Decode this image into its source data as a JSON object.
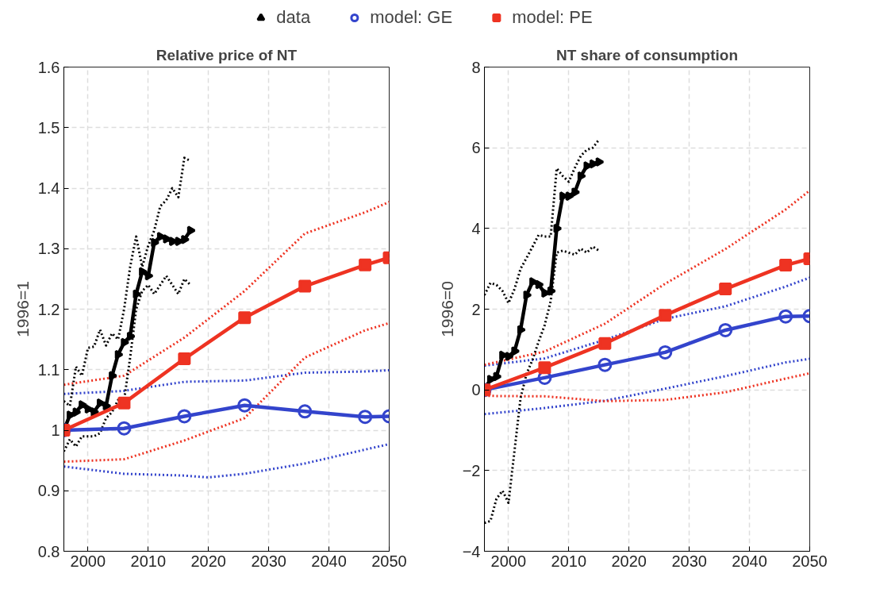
{
  "chart_data": [
    {
      "type": "line",
      "title": "Relative price of NT",
      "ylabel": "1996=1",
      "xlim": [
        1996,
        2050
      ],
      "xticks": [
        2000,
        2010,
        2020,
        2030,
        2040,
        2050
      ],
      "ylim": [
        0.8,
        1.6
      ],
      "yticks": [
        0.8,
        0.9,
        1,
        1.1,
        1.2,
        1.3,
        1.4,
        1.5,
        1.6
      ],
      "grid": true,
      "legend": "top",
      "series": [
        {
          "color": "#3344cc",
          "line_style": "dotted",
          "marker": "none",
          "x": [
            1996,
            2006,
            2016,
            2026,
            2036,
            2046,
            2050
          ],
          "values": [
            1.06,
            1.065,
            1.08,
            1.082,
            1.095,
            1.097,
            1.099
          ]
        },
        {
          "color": "#3344cc",
          "line_style": "dotted",
          "marker": "none",
          "x": [
            1996,
            2006,
            2016,
            2020,
            2026,
            2036,
            2046,
            2050
          ],
          "values": [
            0.94,
            0.928,
            0.925,
            0.922,
            0.928,
            0.945,
            0.968,
            0.977
          ]
        },
        {
          "color": "#ee3322",
          "line_style": "dotted",
          "marker": "none",
          "x": [
            1996,
            2006,
            2016,
            2026,
            2036,
            2046,
            2050
          ],
          "values": [
            1.075,
            1.09,
            1.153,
            1.23,
            1.325,
            1.36,
            1.377
          ]
        },
        {
          "color": "#ee3322",
          "line_style": "dotted",
          "marker": "none",
          "x": [
            1996,
            2006,
            2016,
            2026,
            2036,
            2046,
            2050
          ],
          "values": [
            0.948,
            0.952,
            0.983,
            1.02,
            1.12,
            1.165,
            1.177
          ]
        },
        {
          "color": "#000000",
          "line_style": "dotted",
          "marker": "none",
          "x": [
            1996,
            1997,
            1998,
            1999,
            2000,
            2001,
            2002,
            2003,
            2004,
            2005,
            2006,
            2007,
            2008,
            2009,
            2010,
            2011,
            2012,
            2013,
            2014,
            2015,
            2016,
            2017
          ],
          "values": [
            1.048,
            1.04,
            1.105,
            1.09,
            1.136,
            1.138,
            1.166,
            1.14,
            1.16,
            1.15,
            1.2,
            1.27,
            1.32,
            1.27,
            1.305,
            1.33,
            1.37,
            1.38,
            1.4,
            1.385,
            1.45,
            1.445
          ]
        },
        {
          "color": "#000000",
          "line_style": "dotted",
          "marker": "none",
          "x": [
            1996,
            1997,
            1998,
            1999,
            2000,
            2001,
            2002,
            2003,
            2004,
            2005,
            2006,
            2007,
            2008,
            2009,
            2010,
            2011,
            2012,
            2013,
            2014,
            2015,
            2016,
            2017
          ],
          "values": [
            0.965,
            0.985,
            0.973,
            0.99,
            0.99,
            0.99,
            0.995,
            1.02,
            1.03,
            1.05,
            1.05,
            1.12,
            1.2,
            1.23,
            1.24,
            1.225,
            1.24,
            1.255,
            1.24,
            1.225,
            1.25,
            1.24
          ]
        },
        {
          "name": "data",
          "color": "#000000",
          "line_style": "solid",
          "marker": "triangle",
          "x": [
            1996,
            1997,
            1998,
            1999,
            2000,
            2001,
            2002,
            2003,
            2004,
            2005,
            2006,
            2007,
            2008,
            2009,
            2010,
            2011,
            2012,
            2013,
            2014,
            2015,
            2016,
            2017
          ],
          "values": [
            1.0,
            1.025,
            1.03,
            1.042,
            1.035,
            1.03,
            1.045,
            1.04,
            1.09,
            1.125,
            1.145,
            1.155,
            1.225,
            1.262,
            1.255,
            1.31,
            1.32,
            1.316,
            1.312,
            1.312,
            1.315,
            1.33
          ]
        },
        {
          "name": "model: GE",
          "color": "#3344cc",
          "line_style": "solid",
          "marker": "circle",
          "x": [
            1996,
            2006,
            2016,
            2026,
            2036,
            2046,
            2050
          ],
          "values": [
            1.0,
            1.003,
            1.023,
            1.041,
            1.031,
            1.022,
            1.023
          ]
        },
        {
          "name": "model: PE",
          "color": "#ee3322",
          "line_style": "solid",
          "marker": "square",
          "x": [
            1996,
            2006,
            2016,
            2026,
            2036,
            2046,
            2050
          ],
          "values": [
            1.0,
            1.045,
            1.118,
            1.186,
            1.238,
            1.273,
            1.285
          ]
        }
      ]
    },
    {
      "type": "line",
      "title": "NT share of consumption",
      "ylabel": "1996=0",
      "xlim": [
        1996,
        2050
      ],
      "xticks": [
        2000,
        2010,
        2020,
        2030,
        2040,
        2050
      ],
      "ylim": [
        -4,
        8
      ],
      "yticks": [
        -4,
        -2,
        0,
        2,
        4,
        6,
        8
      ],
      "grid": true,
      "series": [
        {
          "color": "#3344cc",
          "line_style": "dotted",
          "marker": "none",
          "x": [
            1996,
            2006,
            2016,
            2026,
            2036,
            2046,
            2050
          ],
          "values": [
            0.6,
            0.78,
            1.24,
            1.76,
            2.07,
            2.56,
            2.78
          ]
        },
        {
          "color": "#3344cc",
          "line_style": "dotted",
          "marker": "none",
          "x": [
            1996,
            2006,
            2016,
            2026,
            2036,
            2046,
            2050
          ],
          "values": [
            -0.6,
            -0.45,
            -0.27,
            0.03,
            0.34,
            0.68,
            0.77
          ]
        },
        {
          "color": "#ee3322",
          "line_style": "dotted",
          "marker": "none",
          "x": [
            1996,
            2006,
            2016,
            2026,
            2036,
            2046,
            2050
          ],
          "values": [
            0.62,
            0.95,
            1.64,
            2.63,
            3.49,
            4.47,
            4.94
          ]
        },
        {
          "color": "#ee3322",
          "line_style": "dotted",
          "marker": "none",
          "x": [
            1996,
            2006,
            2016,
            2026,
            2036,
            2046,
            2050
          ],
          "values": [
            -0.15,
            -0.16,
            -0.28,
            -0.25,
            -0.06,
            0.28,
            0.41
          ]
        },
        {
          "color": "#000000",
          "line_style": "dotted",
          "marker": "none",
          "x": [
            1996,
            1997,
            1998,
            1999,
            2000,
            2001,
            2002,
            2003,
            2004,
            2005,
            2006,
            2007,
            2008,
            2009,
            2010,
            2011,
            2012,
            2013,
            2014,
            2015
          ],
          "values": [
            2.35,
            2.65,
            2.6,
            2.45,
            2.15,
            2.5,
            3.0,
            3.27,
            3.55,
            3.84,
            3.8,
            3.8,
            5.49,
            5.3,
            5.16,
            5.5,
            5.8,
            5.95,
            6.0,
            6.2
          ]
        },
        {
          "color": "#000000",
          "line_style": "dotted",
          "marker": "none",
          "x": [
            1996,
            1997,
            1998,
            1999,
            2000,
            2001,
            2002,
            2003,
            2004,
            2005,
            2006,
            2007,
            2008,
            2009,
            2010,
            2011,
            2012,
            2013,
            2014,
            2015
          ],
          "values": [
            -3.3,
            -3.25,
            -2.7,
            -2.5,
            -2.8,
            -1.5,
            -0.2,
            0.4,
            0.75,
            1.2,
            1.6,
            2.2,
            3.4,
            3.45,
            3.4,
            3.35,
            3.5,
            3.4,
            3.55,
            3.45
          ]
        },
        {
          "color": "#000000",
          "line_style": "solid",
          "marker": "triangle",
          "x": [
            1996,
            1997,
            1998,
            1999,
            2000,
            2001,
            2002,
            2003,
            2004,
            2005,
            2006,
            2007,
            2008,
            2009,
            2010,
            2011,
            2012,
            2013,
            2014,
            2015
          ],
          "values": [
            0,
            0.26,
            0.33,
            0.86,
            0.83,
            0.96,
            1.49,
            2.35,
            2.68,
            2.61,
            2.4,
            2.45,
            4.0,
            4.8,
            4.8,
            4.9,
            5.3,
            5.55,
            5.6,
            5.65
          ]
        },
        {
          "color": "#3344cc",
          "line_style": "solid",
          "marker": "circle",
          "x": [
            1996,
            2006,
            2016,
            2026,
            2036,
            2046,
            2050
          ],
          "values": [
            0,
            0.3,
            0.62,
            0.93,
            1.48,
            1.82,
            1.83
          ]
        },
        {
          "color": "#ee3322",
          "line_style": "solid",
          "marker": "square",
          "x": [
            1996,
            2006,
            2016,
            2026,
            2036,
            2046,
            2050
          ],
          "values": [
            0,
            0.55,
            1.15,
            1.85,
            2.5,
            3.09,
            3.25
          ]
        }
      ]
    }
  ]
}
